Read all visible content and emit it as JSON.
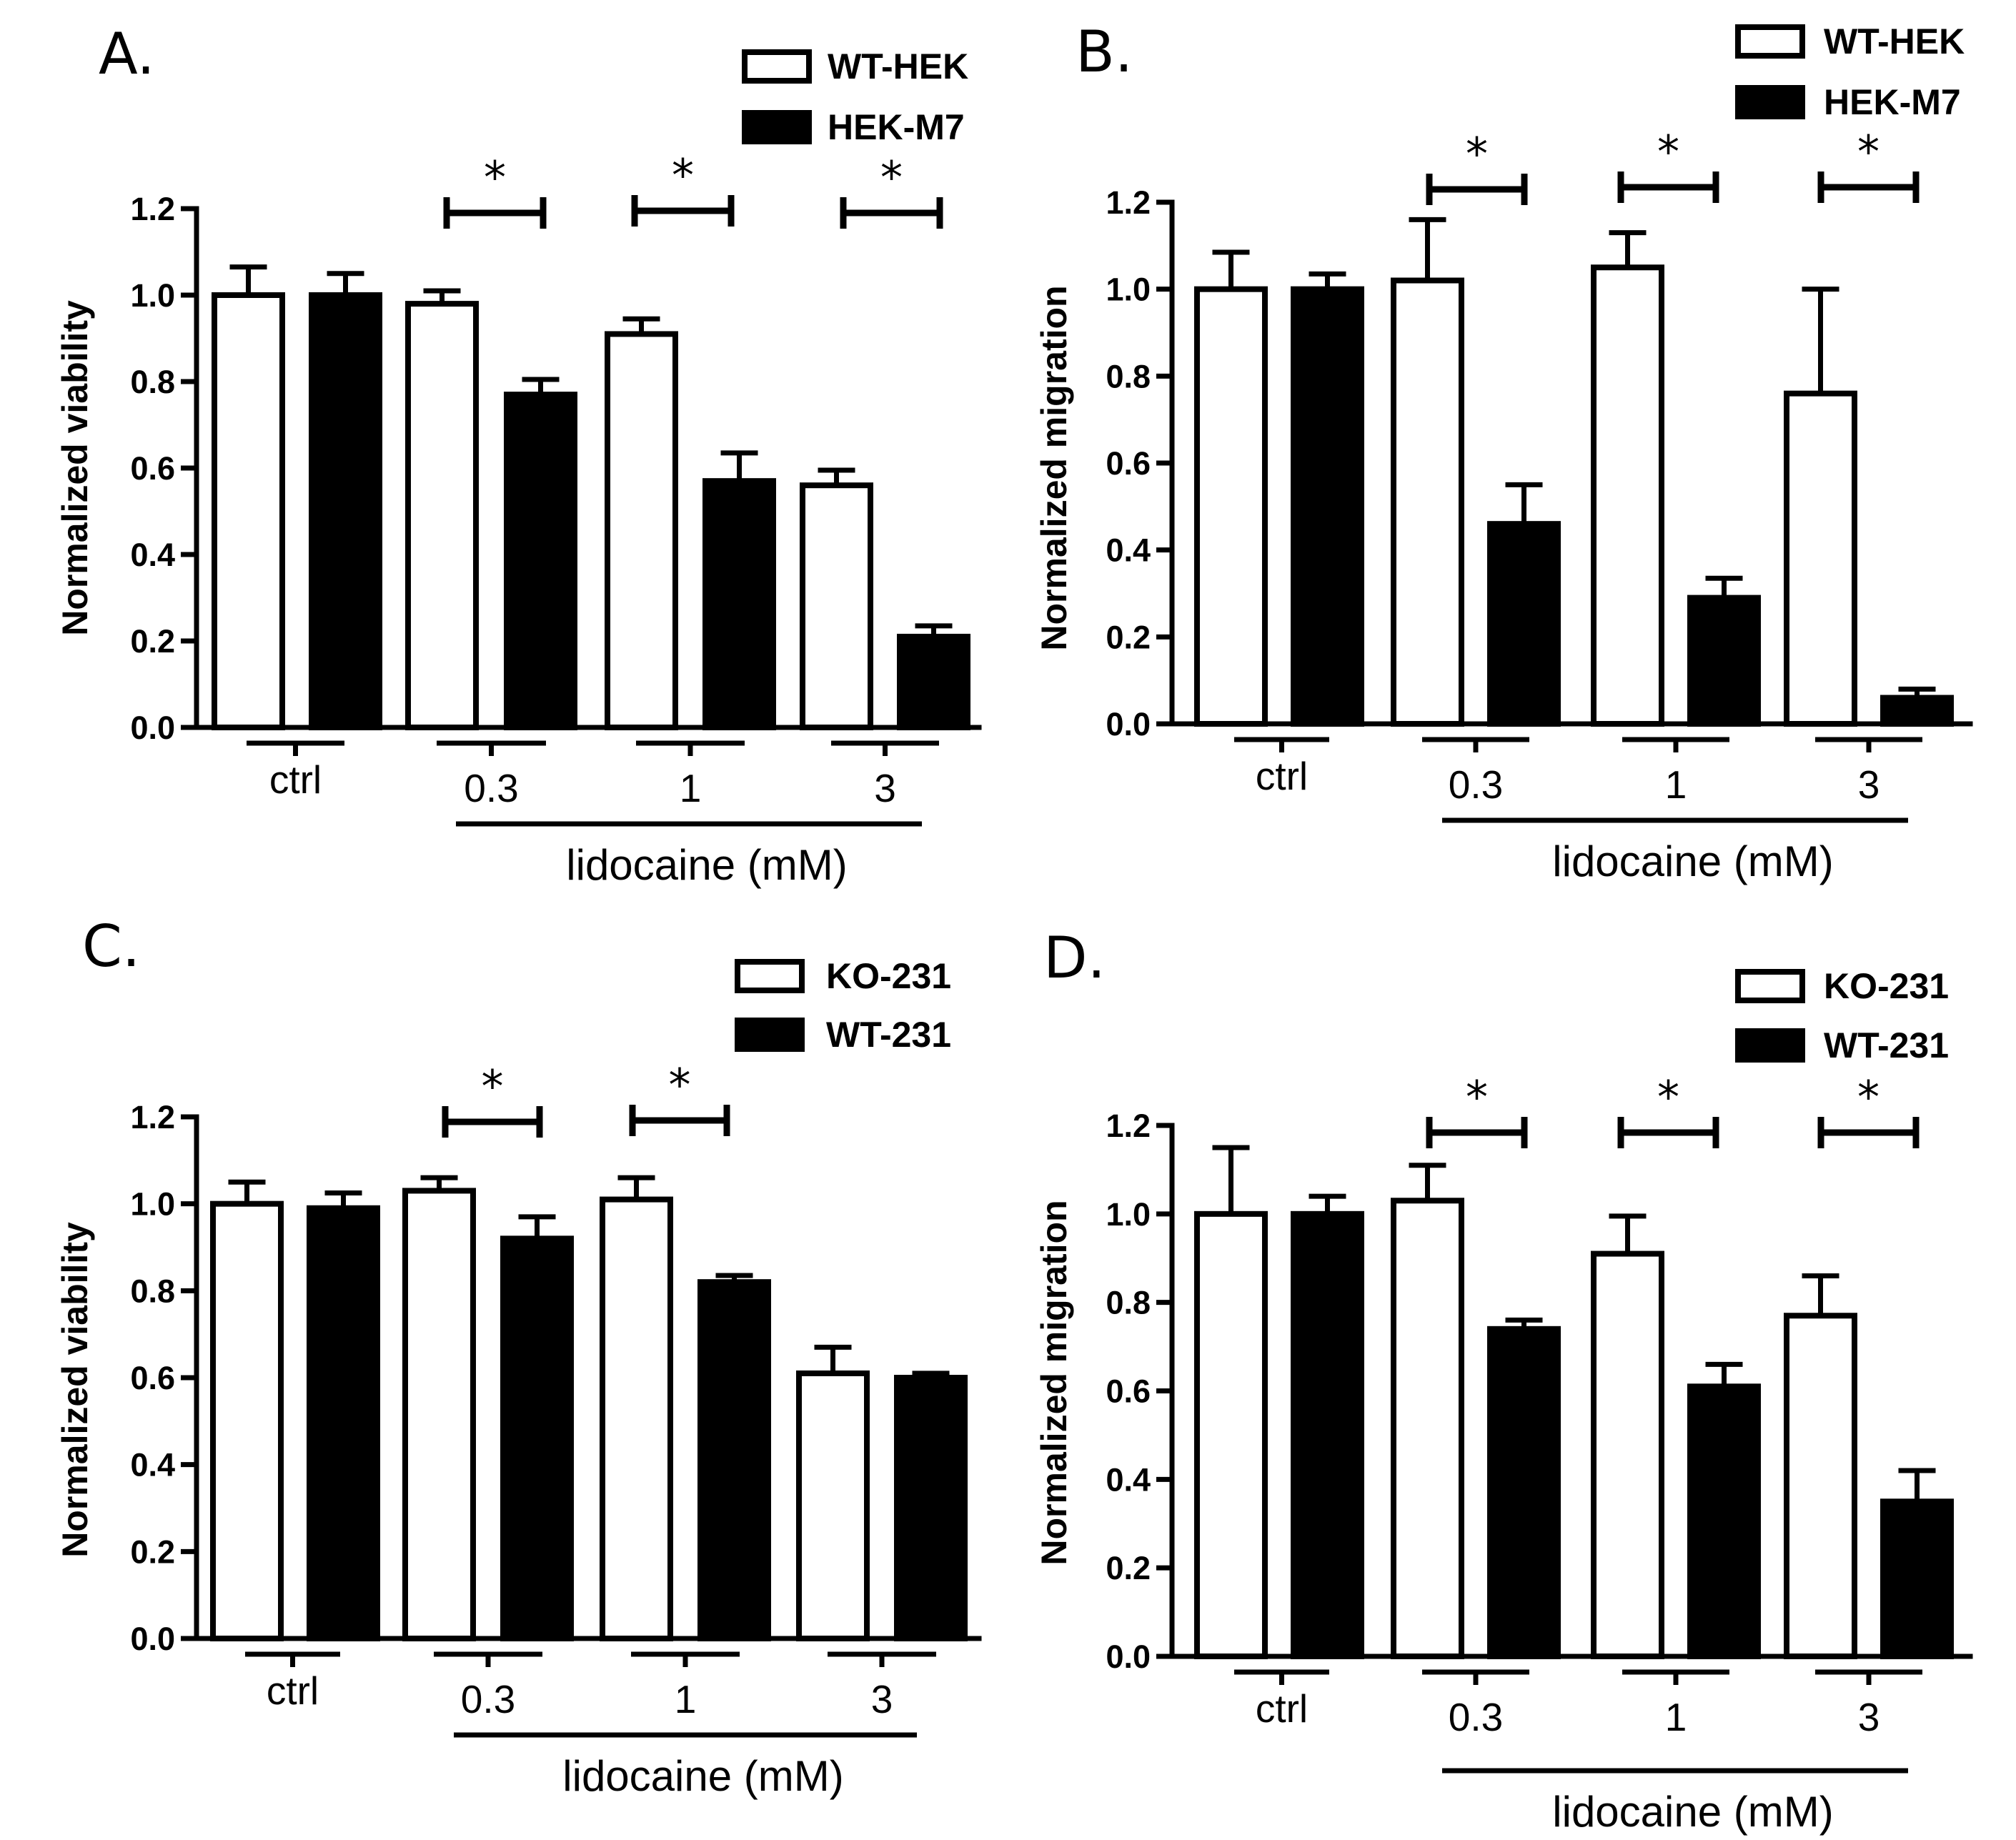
{
  "chart_data": [
    {
      "panel": "A.",
      "type": "bar",
      "categories": [
        "ctrl",
        "0.3",
        "1",
        "3"
      ],
      "series": [
        {
          "name": "WT-HEK",
          "fill": "open",
          "values": [
            1.0,
            0.98,
            0.91,
            0.56
          ],
          "errors": [
            0.065,
            0.03,
            0.035,
            0.035
          ]
        },
        {
          "name": "HEK-M7",
          "fill": "filled",
          "values": [
            1.0,
            0.77,
            0.57,
            0.21
          ],
          "errors": [
            0.05,
            0.035,
            0.065,
            0.025
          ]
        }
      ],
      "significance": [
        "",
        "*",
        "*",
        "*"
      ],
      "ylabel": "Normalized viability",
      "xlabel": "lidocaine (mM)",
      "ylim": [
        0,
        1.2
      ],
      "yticks": [
        "0.0",
        "0.2",
        "0.4",
        "0.6",
        "0.8",
        "1.0",
        "1.2"
      ],
      "legend_position": "top-right"
    },
    {
      "panel": "B.",
      "type": "bar",
      "categories": [
        "ctrl",
        "0.3",
        "1",
        "3"
      ],
      "series": [
        {
          "name": "WT-HEK",
          "fill": "open",
          "values": [
            1.0,
            1.02,
            1.05,
            0.76
          ],
          "errors": [
            0.085,
            0.14,
            0.08,
            0.24
          ]
        },
        {
          "name": "HEK-M7",
          "fill": "filled",
          "values": [
            1.0,
            0.46,
            0.29,
            0.06
          ],
          "errors": [
            0.035,
            0.09,
            0.045,
            0.02
          ]
        }
      ],
      "significance": [
        "",
        "*",
        "*",
        "*"
      ],
      "ylabel": "Normalized migration",
      "xlabel": "lidocaine (mM)",
      "ylim": [
        0,
        1.2
      ],
      "yticks": [
        "0.0",
        "0.2",
        "0.4",
        "0.6",
        "0.8",
        "1.0",
        "1.2"
      ],
      "legend_position": "top-right"
    },
    {
      "panel": "C.",
      "type": "bar",
      "categories": [
        "ctrl",
        "0.3",
        "1",
        "3"
      ],
      "series": [
        {
          "name": "KO-231",
          "fill": "open",
          "values": [
            1.0,
            1.03,
            1.01,
            0.61
          ],
          "errors": [
            0.05,
            0.03,
            0.05,
            0.06
          ]
        },
        {
          "name": "WT-231",
          "fill": "filled",
          "values": [
            0.99,
            0.92,
            0.82,
            0.6
          ],
          "errors": [
            0.035,
            0.05,
            0.015,
            0.01
          ]
        }
      ],
      "significance": [
        "",
        "*",
        "*",
        ""
      ],
      "ylabel": "Normalized viability",
      "xlabel": "lidocaine (mM)",
      "ylim": [
        0,
        1.2
      ],
      "yticks": [
        "0.0",
        "0.2",
        "0.4",
        "0.6",
        "0.8",
        "1.0",
        "1.2"
      ],
      "legend_position": "top-right"
    },
    {
      "panel": "D.",
      "type": "bar",
      "categories": [
        "ctrl",
        "0.3",
        "1",
        "3"
      ],
      "series": [
        {
          "name": "KO-231",
          "fill": "open",
          "values": [
            1.0,
            1.03,
            0.91,
            0.77
          ],
          "errors": [
            0.15,
            0.08,
            0.085,
            0.09
          ]
        },
        {
          "name": "WT-231",
          "fill": "filled",
          "values": [
            1.0,
            0.74,
            0.61,
            0.35
          ],
          "errors": [
            0.04,
            0.02,
            0.05,
            0.07
          ]
        }
      ],
      "significance": [
        "",
        "*",
        "*",
        "*"
      ],
      "ylabel": "Normalized migration",
      "xlabel": "lidocaine (mM)",
      "ylim": [
        0,
        1.2
      ],
      "yticks": [
        "0.0",
        "0.2",
        "0.4",
        "0.6",
        "0.8",
        "1.0",
        "1.2"
      ],
      "legend_position": "top-right"
    }
  ]
}
